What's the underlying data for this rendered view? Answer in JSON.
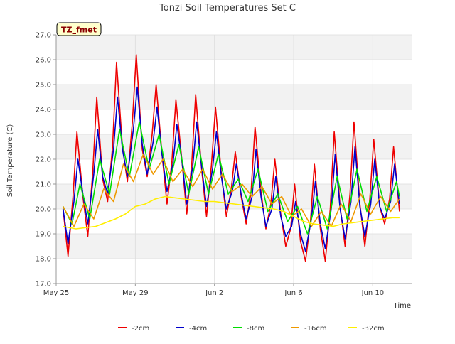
{
  "chart_data": {
    "type": "line",
    "title": "Tonzi Soil Temperatures Set C",
    "xlabel": "Time",
    "ylabel": "Soil Temperature (C)",
    "badge": "TZ_fmet",
    "colors": {
      "badge_bg": "#ffffcc",
      "badge_text": "#8b0000",
      "band": "#f2f2f2",
      "grid": "#dcdcdc"
    },
    "xlim": [
      0,
      18
    ],
    "ylim": [
      17.0,
      27.0
    ],
    "yticks": [
      "17.0",
      "18.0",
      "19.0",
      "20.0",
      "21.0",
      "22.0",
      "23.0",
      "24.0",
      "25.0",
      "26.0",
      "27.0"
    ],
    "xticks": [
      {
        "label": "May 25",
        "x": 0
      },
      {
        "label": "May 29",
        "x": 4
      },
      {
        "label": "Jun 2",
        "x": 8
      },
      {
        "label": "Jun 6",
        "x": 12
      },
      {
        "label": "Jun 10",
        "x": 16
      }
    ],
    "legend_position": "bottom",
    "series": [
      {
        "name": "-2cm",
        "color": "#ee0000",
        "x": [
          0.35,
          0.6,
          0.85,
          1.05,
          1.35,
          1.6,
          1.85,
          2.05,
          2.35,
          2.6,
          2.85,
          3.05,
          3.35,
          3.6,
          3.85,
          4.05,
          4.35,
          4.6,
          4.85,
          5.05,
          5.35,
          5.6,
          5.85,
          6.05,
          6.35,
          6.6,
          6.85,
          7.05,
          7.35,
          7.6,
          7.85,
          8.05,
          8.35,
          8.6,
          8.85,
          9.05,
          9.35,
          9.6,
          9.85,
          10.05,
          10.35,
          10.6,
          10.85,
          11.05,
          11.35,
          11.6,
          11.85,
          12.05,
          12.35,
          12.6,
          12.85,
          13.05,
          13.35,
          13.6,
          13.85,
          14.05,
          14.35,
          14.6,
          14.85,
          15.05,
          15.35,
          15.6,
          15.85,
          16.05,
          16.35,
          16.6,
          16.85,
          17.05,
          17.35
        ],
        "y": [
          20.0,
          18.1,
          20.5,
          23.1,
          20.5,
          18.9,
          21.5,
          24.5,
          21.2,
          20.3,
          22.5,
          25.9,
          22.5,
          21.1,
          23.5,
          26.2,
          22.4,
          21.3,
          23.0,
          25.0,
          22.2,
          20.2,
          21.9,
          24.4,
          22.0,
          19.8,
          21.8,
          24.6,
          21.6,
          19.7,
          21.8,
          24.1,
          21.4,
          19.7,
          20.8,
          22.3,
          20.5,
          19.4,
          20.7,
          23.3,
          20.7,
          19.2,
          20.2,
          22.0,
          19.8,
          18.5,
          19.2,
          21.0,
          18.7,
          17.9,
          19.5,
          21.8,
          19.2,
          17.9,
          20.0,
          23.1,
          20.1,
          18.5,
          20.6,
          23.5,
          20.2,
          18.5,
          20.4,
          22.8,
          20.1,
          19.4,
          20.4,
          22.5,
          19.9
        ]
      },
      {
        "name": "-4cm",
        "color": "#0000cc",
        "x": [
          0.35,
          0.6,
          0.9,
          1.1,
          1.35,
          1.6,
          1.9,
          2.1,
          2.35,
          2.6,
          2.9,
          3.1,
          3.35,
          3.6,
          3.9,
          4.1,
          4.35,
          4.6,
          4.9,
          5.1,
          5.35,
          5.6,
          5.9,
          6.1,
          6.35,
          6.6,
          6.9,
          7.1,
          7.35,
          7.6,
          7.9,
          8.1,
          8.35,
          8.6,
          8.9,
          9.1,
          9.35,
          9.6,
          9.9,
          10.1,
          10.35,
          10.6,
          10.9,
          11.1,
          11.35,
          11.6,
          11.9,
          12.1,
          12.35,
          12.6,
          12.9,
          13.1,
          13.35,
          13.6,
          13.9,
          14.1,
          14.35,
          14.6,
          14.9,
          15.1,
          15.35,
          15.6,
          15.9,
          16.1,
          16.35,
          16.6,
          16.9,
          17.1,
          17.35
        ],
        "y": [
          20.0,
          18.6,
          20.3,
          22.0,
          20.6,
          19.4,
          21.4,
          23.2,
          21.3,
          20.6,
          22.4,
          24.5,
          22.4,
          21.3,
          23.2,
          24.9,
          22.6,
          21.4,
          22.7,
          24.1,
          22.2,
          20.7,
          21.8,
          23.4,
          22.0,
          20.2,
          21.7,
          23.5,
          21.7,
          20.1,
          21.6,
          23.1,
          21.3,
          20.0,
          20.7,
          21.8,
          20.6,
          19.6,
          20.5,
          22.4,
          20.5,
          19.3,
          20.0,
          21.3,
          19.7,
          18.9,
          19.3,
          20.3,
          19.0,
          18.3,
          19.6,
          21.1,
          19.4,
          18.4,
          20.0,
          22.2,
          20.0,
          18.8,
          20.3,
          22.5,
          20.1,
          18.9,
          20.2,
          22.0,
          20.1,
          19.6,
          20.3,
          21.8,
          20.2
        ]
      },
      {
        "name": "-8cm",
        "color": "#00dd00",
        "x": [
          0.35,
          0.8,
          1.2,
          1.7,
          2.2,
          2.7,
          3.2,
          3.7,
          4.2,
          4.7,
          5.2,
          5.7,
          6.2,
          6.7,
          7.2,
          7.7,
          8.2,
          8.7,
          9.2,
          9.7,
          10.2,
          10.7,
          11.2,
          11.7,
          12.2,
          12.7,
          13.2,
          13.7,
          14.2,
          14.7,
          15.2,
          15.7,
          16.2,
          16.7,
          17.2,
          17.35
        ],
        "y": [
          20.1,
          19.4,
          21.0,
          19.6,
          22.0,
          20.6,
          23.2,
          21.3,
          23.5,
          21.6,
          23.0,
          21.0,
          22.6,
          20.6,
          22.5,
          20.6,
          22.2,
          20.6,
          21.2,
          20.3,
          21.6,
          19.9,
          20.6,
          19.5,
          20.1,
          19.0,
          20.5,
          19.2,
          21.3,
          19.6,
          21.6,
          19.9,
          21.3,
          19.9,
          21.1,
          20.5
        ]
      },
      {
        "name": "-16cm",
        "color": "#ee9900",
        "x": [
          0.35,
          0.9,
          1.4,
          1.9,
          2.4,
          2.9,
          3.4,
          3.9,
          4.4,
          4.9,
          5.4,
          5.9,
          6.4,
          6.9,
          7.4,
          7.9,
          8.4,
          8.9,
          9.4,
          9.9,
          10.4,
          10.9,
          11.4,
          11.9,
          12.4,
          12.9,
          13.4,
          13.9,
          14.4,
          14.9,
          15.4,
          15.9,
          16.4,
          16.9,
          17.35
        ],
        "y": [
          20.1,
          19.3,
          20.2,
          19.6,
          20.8,
          20.3,
          21.8,
          21.1,
          22.2,
          21.4,
          22.0,
          21.1,
          21.6,
          20.9,
          21.6,
          20.8,
          21.4,
          20.7,
          21.0,
          20.5,
          20.9,
          20.2,
          20.5,
          19.7,
          20.0,
          19.3,
          19.9,
          19.3,
          20.2,
          19.5,
          20.6,
          19.8,
          20.5,
          19.9,
          20.4
        ]
      },
      {
        "name": "-32cm",
        "color": "#ffee00",
        "x": [
          0.35,
          1.0,
          2.0,
          3.0,
          3.5,
          4.0,
          4.5,
          5.0,
          5.5,
          6.0,
          6.5,
          7.0,
          7.5,
          8.0,
          8.5,
          9.0,
          9.5,
          10.0,
          10.5,
          11.0,
          11.5,
          12.0,
          12.5,
          13.0,
          13.5,
          14.0,
          14.5,
          15.0,
          15.5,
          16.0,
          16.5,
          17.0,
          17.35
        ],
        "y": [
          19.3,
          19.2,
          19.3,
          19.6,
          19.8,
          20.1,
          20.2,
          20.4,
          20.5,
          20.45,
          20.4,
          20.35,
          20.3,
          20.3,
          20.25,
          20.2,
          20.15,
          20.1,
          20.05,
          20.0,
          19.9,
          19.7,
          19.5,
          19.4,
          19.35,
          19.3,
          19.4,
          19.45,
          19.5,
          19.55,
          19.6,
          19.65,
          19.65
        ]
      }
    ]
  }
}
